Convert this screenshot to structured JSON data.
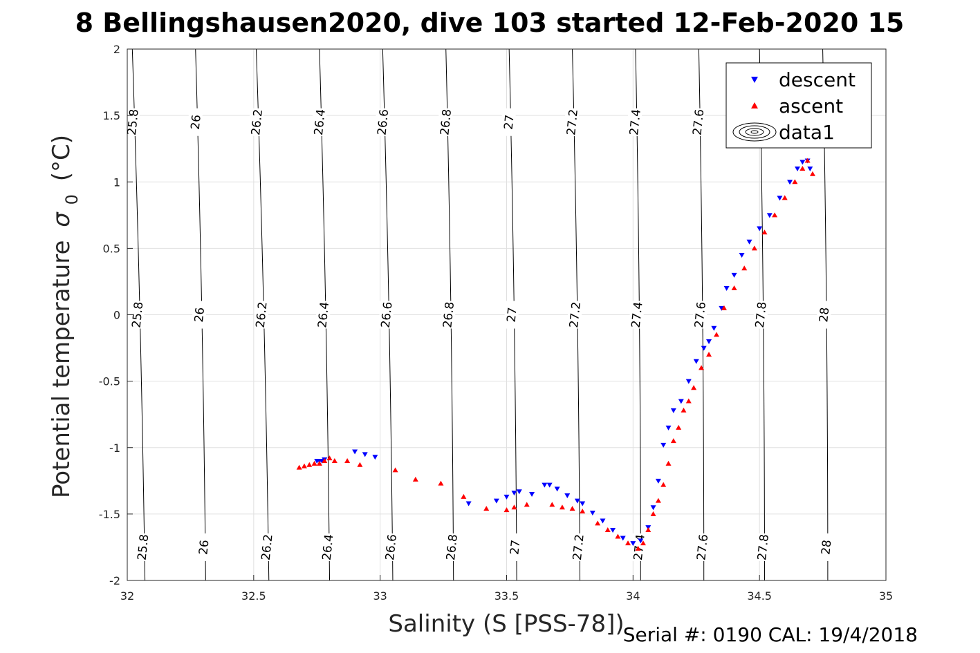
{
  "chart_data": {
    "type": "scatter",
    "title": "8 Bellingshausen2020, dive 103 started 12-Feb-2020 15",
    "xlabel": "Salinity (S [PSS-78])",
    "ylabel": "Potential temperature",
    "ylabel_symbol": "σ",
    "ylabel_subscript": "0",
    "ylabel_unit": "(°C)",
    "footer": "Serial #: 0190  CAL: 19/4/2018",
    "xlim": [
      32,
      35
    ],
    "ylim": [
      -2,
      2
    ],
    "x_ticks": [
      32,
      32.5,
      33,
      33.5,
      34,
      34.5,
      35
    ],
    "x_tick_labels": [
      "32",
      "32.5",
      "33",
      "33.5",
      "34",
      "34.5",
      "35"
    ],
    "y_ticks": [
      2,
      1.5,
      1,
      0.5,
      0,
      -0.5,
      -1,
      -1.5,
      -2
    ],
    "y_tick_labels": [
      "2",
      "1.5",
      "1",
      "0.5",
      "0",
      "-0.5",
      "-1",
      "-1.5",
      "-2"
    ],
    "grid": true,
    "legend_position": "top-right",
    "legend": [
      "descent",
      "ascent",
      "data1"
    ],
    "colors": {
      "descent": "#0000ff",
      "ascent": "#ff0000",
      "contour": "#000000",
      "grid": "#e0e0e0"
    },
    "contours": {
      "levels": [
        25.8,
        26,
        26.2,
        26.4,
        26.6,
        26.8,
        27,
        27.2,
        27.4,
        27.6,
        27.8,
        28
      ],
      "labels": [
        "25.8",
        "26",
        "26.2",
        "26.4",
        "26.6",
        "26.8",
        "27",
        "27.2",
        "27.4",
        "27.6",
        "27.8",
        "28"
      ],
      "salinity_at_theta_-2": [
        32.07,
        32.31,
        32.56,
        32.8,
        33.05,
        33.29,
        33.54,
        33.79,
        34.03,
        34.28,
        34.52,
        34.77
      ],
      "salinity_at_theta_2": [
        32.02,
        32.27,
        32.51,
        32.76,
        33.01,
        33.26,
        33.51,
        33.76,
        34.01,
        34.26,
        34.5,
        34.75
      ],
      "salinity_at_theta_2_alt": [
        32.04,
        32.3,
        32.55,
        32.8,
        33.05,
        33.3,
        33.55,
        33.79,
        34.04,
        34.29,
        34.54,
        34.79
      ]
    },
    "series": [
      {
        "name": "descent",
        "marker": "triangle-down",
        "x": [
          32.75,
          32.76,
          32.77,
          32.78,
          32.9,
          32.94,
          32.98,
          33.35,
          33.46,
          33.5,
          33.53,
          33.55,
          33.6,
          33.65,
          33.67,
          33.7,
          33.74,
          33.78,
          33.8,
          33.84,
          33.88,
          33.92,
          33.96,
          34.0,
          34.03,
          34.06,
          34.08,
          34.1,
          34.12,
          34.14,
          34.16,
          34.19,
          34.22,
          34.25,
          34.28,
          34.3,
          34.32,
          34.35,
          34.37,
          34.4,
          34.43,
          34.46,
          34.5,
          34.54,
          34.58,
          34.62,
          34.65,
          34.67,
          34.69,
          34.7
        ],
        "y": [
          -1.1,
          -1.1,
          -1.1,
          -1.09,
          -1.03,
          -1.05,
          -1.07,
          -1.42,
          -1.4,
          -1.37,
          -1.34,
          -1.33,
          -1.35,
          -1.28,
          -1.28,
          -1.31,
          -1.36,
          -1.4,
          -1.42,
          -1.49,
          -1.55,
          -1.62,
          -1.68,
          -1.72,
          -1.7,
          -1.6,
          -1.45,
          -1.25,
          -0.98,
          -0.85,
          -0.72,
          -0.65,
          -0.5,
          -0.35,
          -0.25,
          -0.2,
          -0.1,
          0.05,
          0.2,
          0.3,
          0.45,
          0.55,
          0.65,
          0.75,
          0.88,
          1.0,
          1.1,
          1.15,
          1.16,
          1.1
        ]
      },
      {
        "name": "ascent",
        "marker": "triangle-up",
        "x": [
          32.68,
          32.7,
          32.72,
          32.74,
          32.76,
          32.78,
          32.8,
          32.82,
          32.87,
          32.92,
          33.06,
          33.14,
          33.24,
          33.33,
          33.42,
          33.5,
          33.53,
          33.58,
          33.68,
          33.72,
          33.76,
          33.8,
          33.86,
          33.9,
          33.94,
          33.98,
          34.02,
          34.04,
          34.06,
          34.08,
          34.1,
          34.12,
          34.14,
          34.16,
          34.18,
          34.2,
          34.22,
          34.24,
          34.27,
          34.3,
          34.33,
          34.36,
          34.4,
          34.44,
          34.48,
          34.52,
          34.56,
          34.6,
          34.64,
          34.67,
          34.69,
          34.71
        ],
        "y": [
          -1.15,
          -1.14,
          -1.13,
          -1.12,
          -1.12,
          -1.1,
          -1.08,
          -1.1,
          -1.1,
          -1.13,
          -1.17,
          -1.24,
          -1.27,
          -1.37,
          -1.46,
          -1.47,
          -1.45,
          -1.43,
          -1.43,
          -1.45,
          -1.46,
          -1.48,
          -1.57,
          -1.62,
          -1.67,
          -1.72,
          -1.76,
          -1.72,
          -1.62,
          -1.5,
          -1.4,
          -1.28,
          -1.12,
          -0.95,
          -0.85,
          -0.72,
          -0.65,
          -0.55,
          -0.4,
          -0.3,
          -0.15,
          0.05,
          0.2,
          0.35,
          0.5,
          0.62,
          0.75,
          0.88,
          1.0,
          1.1,
          1.16,
          1.06
        ]
      }
    ]
  }
}
